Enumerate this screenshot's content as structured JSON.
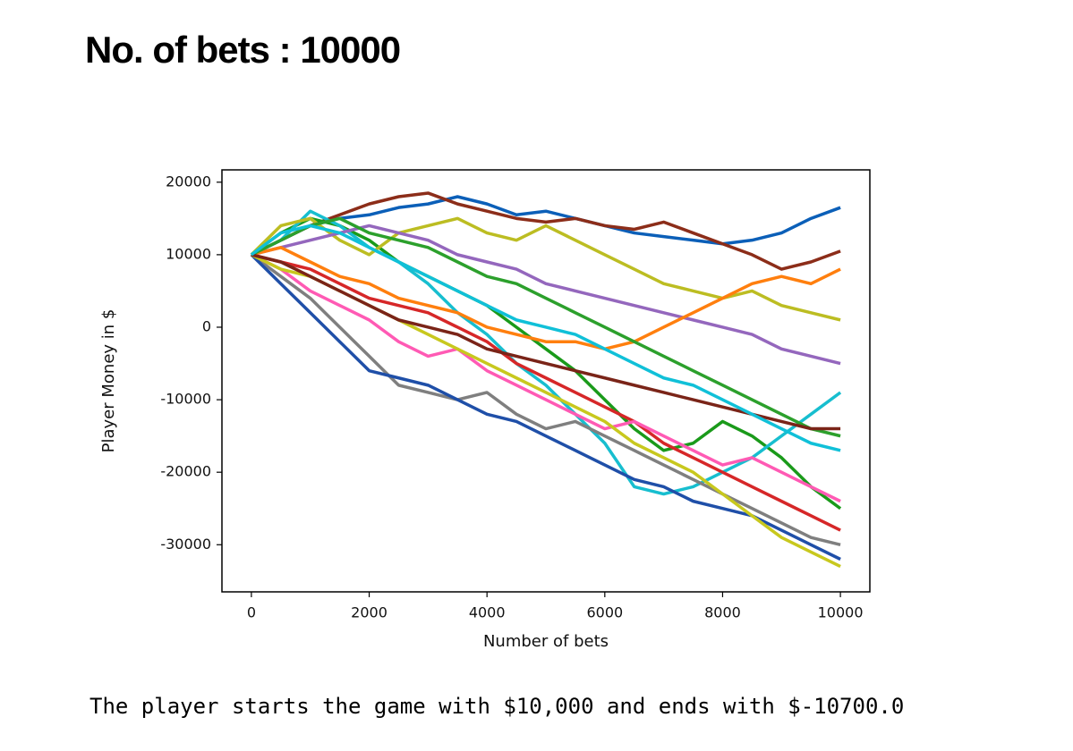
{
  "heading": "No. of bets : 10000",
  "caption": "The player starts the game with $10,000 and ends with $-10700.0",
  "chart_data": {
    "type": "line",
    "xlabel": "Number of bets",
    "ylabel": "Player Money in $",
    "xlim": [
      -500,
      10500
    ],
    "ylim": [
      -36500,
      21700
    ],
    "xticks": [
      0,
      2000,
      4000,
      6000,
      8000,
      10000
    ],
    "yticks": [
      -30000,
      -20000,
      -10000,
      0,
      10000,
      20000
    ],
    "grid": false,
    "x": [
      0,
      500,
      1000,
      1500,
      2000,
      2500,
      3000,
      3500,
      4000,
      4500,
      5000,
      5500,
      6000,
      6500,
      7000,
      7500,
      8000,
      8500,
      9000,
      9500,
      10000
    ],
    "series": [
      {
        "color": "#0b5fb8",
        "values": [
          10000,
          12000,
          14000,
          15000,
          15500,
          16500,
          17000,
          18000,
          17000,
          15500,
          16000,
          15000,
          14000,
          13000,
          12500,
          12000,
          11500,
          12000,
          13000,
          15000,
          16500
        ]
      },
      {
        "color": "#8c2d19",
        "values": [
          10000,
          12000,
          14000,
          15500,
          17000,
          18000,
          18500,
          17000,
          16000,
          15000,
          14500,
          15000,
          14000,
          13500,
          14500,
          13000,
          11500,
          10000,
          8000,
          9000,
          10500
        ]
      },
      {
        "color": "#1a9a1a",
        "values": [
          10000,
          13000,
          15000,
          14000,
          12000,
          9000,
          7000,
          5000,
          3000,
          0,
          -3000,
          -6000,
          -10000,
          -14000,
          -17000,
          -16000,
          -13000,
          -15000,
          -18000,
          -22000,
          -25000
        ]
      },
      {
        "color": "#17becf",
        "values": [
          10000,
          12000,
          16000,
          14000,
          11000,
          9000,
          6000,
          2000,
          -1000,
          -5000,
          -8000,
          -12000,
          -16000,
          -22000,
          -23000,
          -22000,
          -20000,
          -18000,
          -15000,
          -12000,
          -9000
        ]
      },
      {
        "color": "#7f7f7f",
        "values": [
          10000,
          7000,
          4000,
          0,
          -4000,
          -8000,
          -9000,
          -10000,
          -9000,
          -12000,
          -14000,
          -13000,
          -15000,
          -17000,
          -19000,
          -21000,
          -23000,
          -25000,
          -27000,
          -29000,
          -30000
        ]
      },
      {
        "color": "#bcbd22",
        "values": [
          10000,
          14000,
          15000,
          12000,
          10000,
          13000,
          14000,
          15000,
          13000,
          12000,
          14000,
          12000,
          10000,
          8000,
          6000,
          5000,
          4000,
          5000,
          3000,
          2000,
          1000
        ]
      },
      {
        "color": "#d62728",
        "values": [
          10000,
          9000,
          8000,
          6000,
          4000,
          3000,
          2000,
          0,
          -2000,
          -5000,
          -7000,
          -9000,
          -11000,
          -13000,
          -16000,
          -18000,
          -20000,
          -22000,
          -24000,
          -26000,
          -28000
        ]
      },
      {
        "color": "#ff5ab4",
        "values": [
          10000,
          8000,
          5000,
          3000,
          1000,
          -2000,
          -4000,
          -3000,
          -6000,
          -8000,
          -10000,
          -12000,
          -14000,
          -13000,
          -15000,
          -17000,
          -19000,
          -18000,
          -20000,
          -22000,
          -24000
        ]
      },
      {
        "color": "#9467bd",
        "values": [
          10000,
          11000,
          12000,
          13000,
          14000,
          13000,
          12000,
          10000,
          9000,
          8000,
          6000,
          5000,
          4000,
          3000,
          2000,
          1000,
          0,
          -1000,
          -3000,
          -4000,
          -5000
        ]
      },
      {
        "color": "#ff7f0e",
        "values": [
          10000,
          11000,
          9000,
          7000,
          6000,
          4000,
          3000,
          2000,
          0,
          -1000,
          -2000,
          -2000,
          -3000,
          -2000,
          0,
          2000,
          4000,
          6000,
          7000,
          6000,
          8000
        ]
      },
      {
        "color": "#1f4fa8",
        "values": [
          10000,
          6000,
          2000,
          -2000,
          -6000,
          -7000,
          -8000,
          -10000,
          -12000,
          -13000,
          -15000,
          -17000,
          -19000,
          -21000,
          -22000,
          -24000,
          -25000,
          -26000,
          -28000,
          -30000,
          -32000
        ]
      },
      {
        "color": "#c8c81e",
        "values": [
          10000,
          8000,
          7000,
          5000,
          3000,
          1000,
          -1000,
          -3000,
          -5000,
          -7000,
          -9000,
          -11000,
          -13000,
          -16000,
          -18000,
          -20000,
          -23000,
          -26000,
          -29000,
          -31000,
          -33000
        ]
      },
      {
        "color": "#2ca02c",
        "values": [
          10000,
          12000,
          14000,
          15000,
          13000,
          12000,
          11000,
          9000,
          7000,
          6000,
          4000,
          2000,
          0,
          -2000,
          -4000,
          -6000,
          -8000,
          -10000,
          -12000,
          -14000,
          -15000
        ]
      },
      {
        "color": "#7a2418",
        "values": [
          10000,
          9000,
          7000,
          5000,
          3000,
          1000,
          0,
          -1000,
          -3000,
          -4000,
          -5000,
          -6000,
          -7000,
          -8000,
          -9000,
          -10000,
          -11000,
          -12000,
          -13000,
          -14000,
          -14000
        ]
      },
      {
        "color": "#10c0d8",
        "values": [
          10000,
          13000,
          14000,
          13000,
          11000,
          9000,
          7000,
          5000,
          3000,
          1000,
          0,
          -1000,
          -3000,
          -5000,
          -7000,
          -8000,
          -10000,
          -12000,
          -14000,
          -16000,
          -17000
        ]
      }
    ]
  }
}
